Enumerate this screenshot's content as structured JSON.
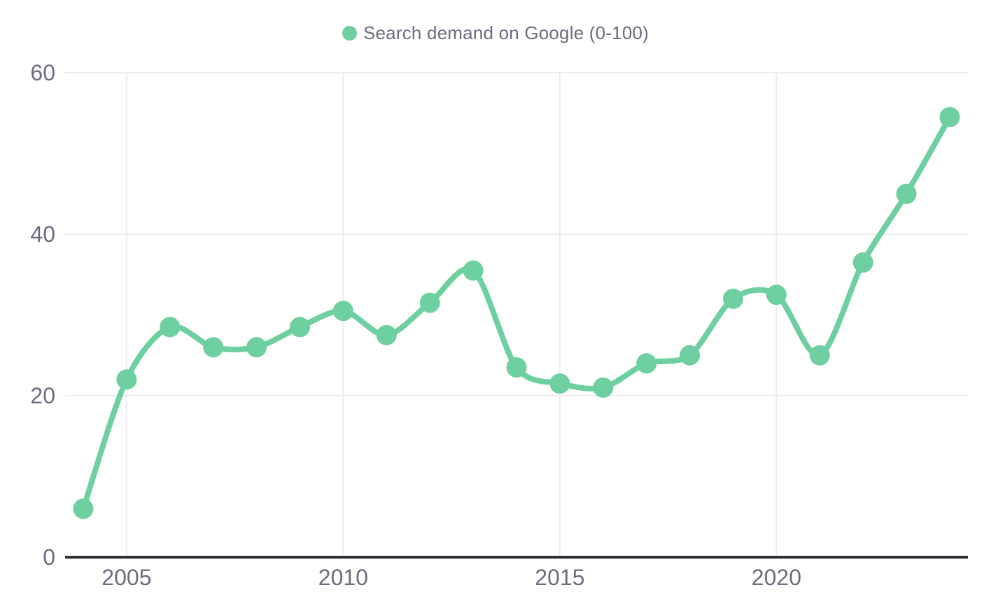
{
  "legend": {
    "label": "Search demand on Google (0-100)"
  },
  "colors": {
    "series": "#6ECFA0",
    "grid": "#EDEDF1",
    "axis": "#2D2D35",
    "tick_text": "#6C6C80",
    "background": "#FFFFFF"
  },
  "chart_data": {
    "type": "line",
    "title": "",
    "xlabel": "",
    "ylabel": "",
    "x": [
      2004,
      2005,
      2006,
      2007,
      2008,
      2009,
      2010,
      2011,
      2012,
      2013,
      2014,
      2015,
      2016,
      2017,
      2018,
      2019,
      2020,
      2021,
      2022,
      2023,
      2024
    ],
    "series": [
      {
        "name": "Search demand on Google (0-100)",
        "color": "#6ECFA0",
        "values": [
          6,
          22,
          28.5,
          26,
          26,
          28.5,
          30.5,
          27.5,
          31.5,
          35.5,
          23.5,
          21.5,
          21,
          24,
          25,
          32,
          32.5,
          25,
          36.5,
          45,
          54.5
        ]
      }
    ],
    "ylim": [
      0,
      60
    ],
    "yticks": [
      0,
      20,
      40,
      60
    ],
    "ytick_labels": [
      "0",
      "20",
      "40",
      "60"
    ],
    "xticks": [
      2005,
      2010,
      2015,
      2020
    ],
    "xtick_labels": [
      "2005",
      "2010",
      "2015",
      "2020"
    ],
    "grid": true,
    "legend_position": "top-center",
    "marker": "circle"
  }
}
